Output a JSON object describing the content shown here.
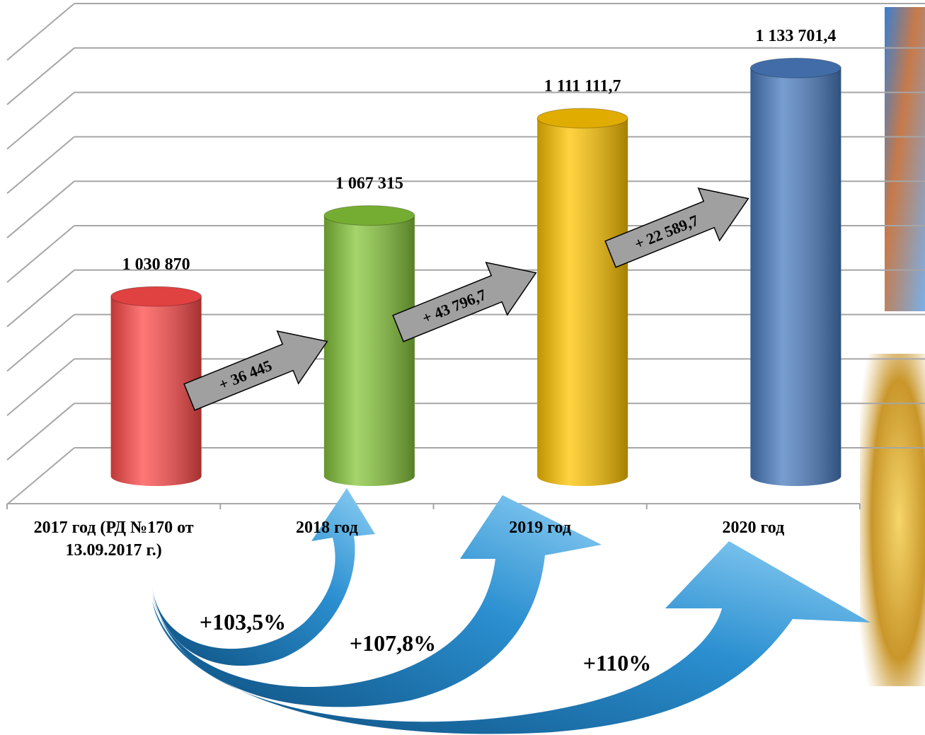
{
  "chart_data": {
    "type": "bar",
    "categories": [
      "2017 год (РД №170 от 13.09.2017 г.)",
      "2018 год",
      "2019 год",
      "2020 год"
    ],
    "series": [
      {
        "values": [
          1030870,
          1067315,
          1111111.7,
          1133701.4
        ],
        "value_labels": [
          "1 030 870",
          "1 067 315",
          "1 111 111,7",
          "1 133 701,4"
        ],
        "colors": [
          "#ff4a4a",
          "#86c53a",
          "#ffc400",
          "#4a7cc0"
        ]
      }
    ],
    "ylim": [
      950000,
      1150000
    ],
    "yticks": [
      950000,
      970000,
      990000,
      1010000,
      1030000,
      1050000,
      1070000,
      1090000,
      1110000,
      1130000,
      1150000
    ],
    "grid": true,
    "annotations": {
      "differences": [
        "+ 36 445",
        "+ 43 796,7",
        "+ 22 589,7"
      ],
      "growth": [
        "+103,5%",
        "+107,8%",
        "+110%"
      ]
    }
  }
}
